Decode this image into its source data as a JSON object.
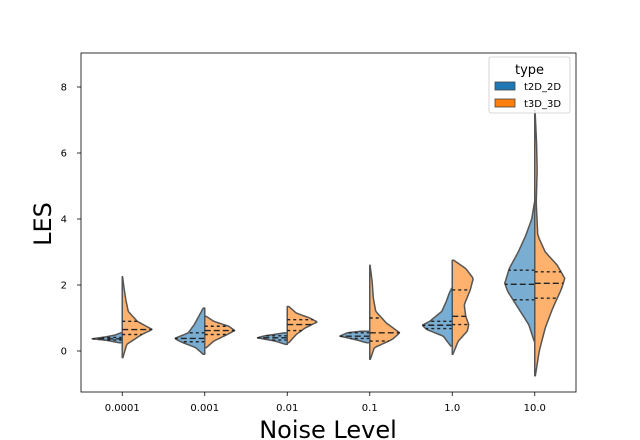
{
  "chart_data": {
    "type": "violin",
    "split": true,
    "title": "",
    "xlabel": "Noise Level",
    "ylabel": "LES",
    "ylim": [
      -1.3,
      9.0
    ],
    "yticks": [
      0,
      2,
      4,
      6,
      8
    ],
    "grid": false,
    "categories": [
      "0.0001",
      "0.001",
      "0.01",
      "0.1",
      "1.0",
      "10.0"
    ],
    "legend": {
      "title": "type",
      "placement": "top-right",
      "entries": [
        {
          "label": "t2D_2D",
          "color": "#1f77b4"
        },
        {
          "label": "t3D_3D",
          "color": "#ff7f0e"
        }
      ]
    },
    "series": [
      {
        "name": "t2D_2D",
        "side": "left",
        "color": "#1f77b4",
        "violins": [
          {
            "min": 0.25,
            "max": 0.55,
            "q1": 0.33,
            "median": 0.37,
            "q3": 0.41,
            "profile": [
              [
                0.25,
                0.1
              ],
              [
                0.32,
                0.5
              ],
              [
                0.37,
                1.0
              ],
              [
                0.42,
                0.6
              ],
              [
                0.48,
                0.25
              ],
              [
                0.55,
                0.05
              ]
            ]
          },
          {
            "min": -0.1,
            "max": 1.3,
            "q1": 0.28,
            "median": 0.38,
            "q3": 0.55,
            "profile": [
              [
                -0.1,
                0.05
              ],
              [
                0.1,
                0.3
              ],
              [
                0.28,
                0.8
              ],
              [
                0.38,
                1.0
              ],
              [
                0.55,
                0.55
              ],
              [
                0.8,
                0.35
              ],
              [
                1.05,
                0.2
              ],
              [
                1.3,
                0.05
              ]
            ]
          },
          {
            "min": 0.2,
            "max": 0.55,
            "q1": 0.33,
            "median": 0.4,
            "q3": 0.46,
            "profile": [
              [
                0.2,
                0.05
              ],
              [
                0.3,
                0.4
              ],
              [
                0.4,
                1.0
              ],
              [
                0.46,
                0.75
              ],
              [
                0.5,
                0.45
              ],
              [
                0.55,
                0.1
              ]
            ]
          },
          {
            "min": 0.25,
            "max": 0.6,
            "q1": 0.38,
            "median": 0.45,
            "q3": 0.55,
            "profile": [
              [
                0.25,
                0.1
              ],
              [
                0.35,
                0.5
              ],
              [
                0.45,
                1.0
              ],
              [
                0.55,
                0.75
              ],
              [
                0.6,
                0.3
              ]
            ]
          },
          {
            "min": 0.15,
            "max": 1.9,
            "q1": 0.68,
            "median": 0.78,
            "q3": 0.9,
            "profile": [
              [
                0.15,
                0.05
              ],
              [
                0.45,
                0.3
              ],
              [
                0.65,
                0.85
              ],
              [
                0.78,
                1.0
              ],
              [
                0.9,
                0.75
              ],
              [
                1.2,
                0.35
              ],
              [
                1.5,
                0.2
              ],
              [
                1.75,
                0.1
              ],
              [
                1.9,
                0.02
              ]
            ]
          },
          {
            "min": 0.3,
            "max": 4.5,
            "q1": 1.55,
            "median": 2.02,
            "q3": 2.45,
            "profile": [
              [
                0.3,
                0.02
              ],
              [
                0.8,
                0.2
              ],
              [
                1.3,
                0.55
              ],
              [
                1.8,
                0.9
              ],
              [
                2.05,
                1.0
              ],
              [
                2.5,
                0.85
              ],
              [
                3.0,
                0.55
              ],
              [
                3.5,
                0.3
              ],
              [
                4.0,
                0.1
              ],
              [
                4.5,
                0.01
              ]
            ]
          }
        ]
      },
      {
        "name": "t3D_3D",
        "side": "right",
        "color": "#ff7f0e",
        "violins": [
          {
            "min": -0.2,
            "max": 2.25,
            "q1": 0.5,
            "median": 0.65,
            "q3": 0.9,
            "profile": [
              [
                -0.2,
                0.02
              ],
              [
                0.2,
                0.15
              ],
              [
                0.5,
                0.65
              ],
              [
                0.65,
                1.0
              ],
              [
                0.9,
                0.5
              ],
              [
                1.2,
                0.2
              ],
              [
                1.55,
                0.12
              ],
              [
                1.9,
                0.06
              ],
              [
                2.25,
                0.01
              ]
            ]
          },
          {
            "min": 0.1,
            "max": 1.05,
            "q1": 0.5,
            "median": 0.62,
            "q3": 0.75,
            "profile": [
              [
                0.1,
                0.05
              ],
              [
                0.3,
                0.3
              ],
              [
                0.5,
                0.75
              ],
              [
                0.62,
                1.0
              ],
              [
                0.75,
                0.8
              ],
              [
                0.9,
                0.3
              ],
              [
                1.05,
                0.05
              ]
            ]
          },
          {
            "min": 0.25,
            "max": 1.35,
            "q1": 0.62,
            "median": 0.8,
            "q3": 0.95,
            "profile": [
              [
                0.25,
                0.05
              ],
              [
                0.5,
                0.3
              ],
              [
                0.7,
                0.6
              ],
              [
                0.88,
                1.0
              ],
              [
                1.0,
                0.75
              ],
              [
                1.15,
                0.3
              ],
              [
                1.35,
                0.05
              ]
            ]
          },
          {
            "min": -0.25,
            "max": 2.6,
            "q1": 0.3,
            "median": 0.55,
            "q3": 1.0,
            "profile": [
              [
                -0.25,
                0.02
              ],
              [
                0.1,
                0.15
              ],
              [
                0.35,
                0.75
              ],
              [
                0.55,
                1.0
              ],
              [
                0.85,
                0.55
              ],
              [
                1.2,
                0.2
              ],
              [
                1.6,
                0.12
              ],
              [
                2.1,
                0.08
              ],
              [
                2.6,
                0.01
              ]
            ]
          },
          {
            "min": -0.1,
            "max": 2.75,
            "q1": 0.8,
            "median": 1.05,
            "q3": 1.85,
            "profile": [
              [
                -0.1,
                0.02
              ],
              [
                0.3,
                0.2
              ],
              [
                0.6,
                0.5
              ],
              [
                0.8,
                0.55
              ],
              [
                1.05,
                0.45
              ],
              [
                1.4,
                0.4
              ],
              [
                1.85,
                0.6
              ],
              [
                2.2,
                0.7
              ],
              [
                2.5,
                0.45
              ],
              [
                2.75,
                0.05
              ]
            ]
          },
          {
            "min": -0.75,
            "max": 7.3,
            "q1": 1.6,
            "median": 2.05,
            "q3": 2.4,
            "profile": [
              [
                -0.75,
                0.02
              ],
              [
                0.0,
                0.15
              ],
              [
                0.7,
                0.35
              ],
              [
                1.3,
                0.6
              ],
              [
                1.9,
                0.9
              ],
              [
                2.2,
                1.0
              ],
              [
                2.6,
                0.75
              ],
              [
                3.0,
                0.35
              ],
              [
                3.5,
                0.1
              ],
              [
                4.5,
                0.05
              ],
              [
                5.5,
                0.08
              ],
              [
                6.3,
                0.06
              ],
              [
                7.3,
                0.01
              ]
            ]
          }
        ]
      }
    ]
  }
}
